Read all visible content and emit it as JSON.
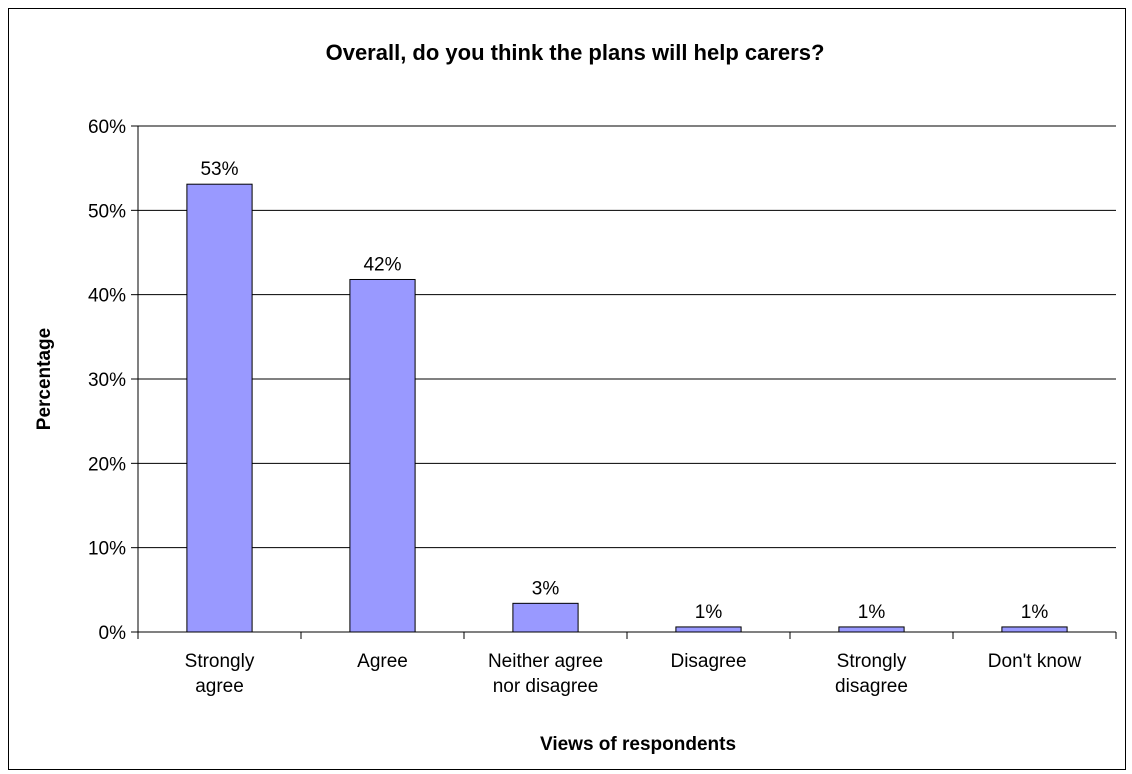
{
  "chart_data": {
    "type": "bar",
    "title": "Overall, do you think the plans will help carers?",
    "xlabel": "Views of respondents",
    "ylabel": "Percentage",
    "categories": [
      [
        "Strongly",
        "agree"
      ],
      [
        "Agree"
      ],
      [
        "Neither agree",
        "nor disagree"
      ],
      [
        "Disagree"
      ],
      [
        "Strongly",
        "disagree"
      ],
      [
        "Don't know"
      ]
    ],
    "values": [
      53,
      42,
      3,
      1,
      1,
      1
    ],
    "value_heights": [
      53.1,
      41.8,
      3.4,
      0.6,
      0.6,
      0.6
    ],
    "data_labels": [
      "53%",
      "42%",
      "3%",
      "1%",
      "1%",
      "1%"
    ],
    "ylim": [
      0,
      60
    ],
    "yticks": [
      0,
      10,
      20,
      30,
      40,
      50,
      60
    ],
    "ytick_labels": [
      "0%",
      "10%",
      "20%",
      "30%",
      "40%",
      "50%",
      "60%"
    ],
    "grid": true,
    "legend": "none",
    "colors": {
      "bar_fill": "#9999ff",
      "bar_stroke": "#000000",
      "grid": "#000000"
    }
  }
}
